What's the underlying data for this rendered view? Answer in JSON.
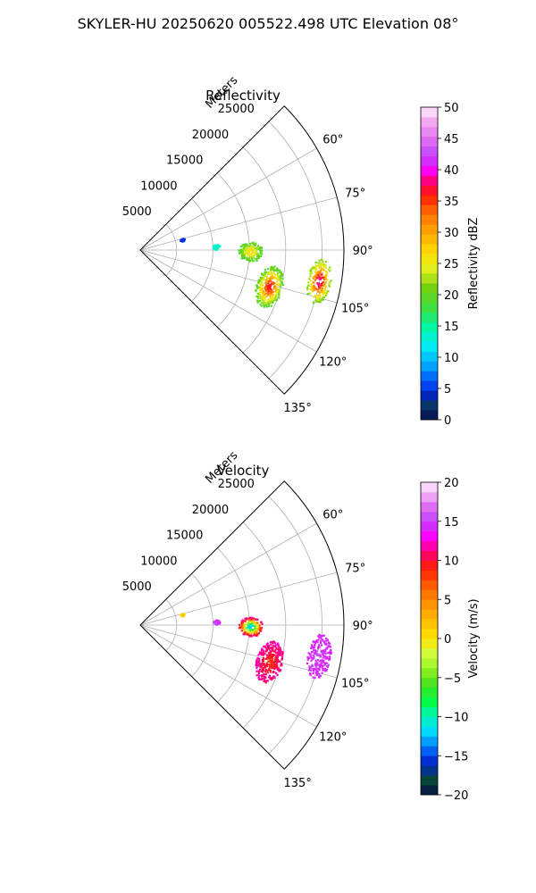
{
  "figure": {
    "title": "SKYLER-HU  20250620  005522.498 UTC Elevation 08°"
  },
  "chart_data": [
    {
      "type": "heatmap",
      "projection": "polar-sector",
      "title": "Reflectivity",
      "radial_label": "Meters",
      "radial_ticks": [
        5000,
        10000,
        15000,
        20000,
        25000
      ],
      "radial_tick_labels": [
        "5000",
        "10000",
        "15000",
        "20000",
        "25000"
      ],
      "r_max": 28000,
      "theta_range_deg": [
        45,
        135
      ],
      "angle_ticks_deg": [
        60,
        75,
        90,
        105,
        120,
        135
      ],
      "angle_tick_labels": [
        "60°",
        "75°",
        "90°",
        "105°",
        "120°",
        "135°"
      ],
      "grid": true,
      "colorbar": {
        "label": "Reflectivity dBZ",
        "min": 0,
        "max": 50,
        "ticks": [
          0,
          5,
          10,
          15,
          20,
          25,
          30,
          35,
          40,
          45,
          50
        ],
        "tick_labels": [
          "0",
          "5",
          "10",
          "15",
          "20",
          "25",
          "30",
          "35",
          "40",
          "45",
          "50"
        ],
        "stops": [
          {
            "v": 0,
            "c": "#000f40"
          },
          {
            "v": 2,
            "c": "#0a2a80"
          },
          {
            "v": 3,
            "c": "#0a4a3a"
          },
          {
            "v": 4,
            "c": "#0020c8"
          },
          {
            "v": 6,
            "c": "#0050ff"
          },
          {
            "v": 9,
            "c": "#00b0ff"
          },
          {
            "v": 12,
            "c": "#00f0f0"
          },
          {
            "v": 15,
            "c": "#00f5a0"
          },
          {
            "v": 18,
            "c": "#40e040"
          },
          {
            "v": 21,
            "c": "#70d010"
          },
          {
            "v": 24,
            "c": "#e0f020"
          },
          {
            "v": 27,
            "c": "#ffd800"
          },
          {
            "v": 30,
            "c": "#ffa800"
          },
          {
            "v": 33,
            "c": "#ff7000"
          },
          {
            "v": 36,
            "c": "#ff1800"
          },
          {
            "v": 38,
            "c": "#ff0070"
          },
          {
            "v": 40,
            "c": "#ff00ff"
          },
          {
            "v": 42,
            "c": "#c040ff"
          },
          {
            "v": 45,
            "c": "#e070f0"
          },
          {
            "v": 48,
            "c": "#f4b0f0"
          },
          {
            "v": 50,
            "c": "#fff0ff"
          }
        ]
      },
      "cells": [
        {
          "az": 100,
          "r": 25000,
          "dr": 1600,
          "daz": 7,
          "peak": 39,
          "base": 19
        },
        {
          "az": 106,
          "r": 18500,
          "dr": 1800,
          "daz": 9,
          "peak": 37,
          "base": 17
        },
        {
          "az": 91,
          "r": 15200,
          "dr": 1700,
          "daz": 5,
          "peak": 27,
          "base": 18
        },
        {
          "az": 88,
          "r": 10500,
          "dr": 500,
          "daz": 2,
          "peak": 14,
          "base": 13
        },
        {
          "az": 77,
          "r": 6000,
          "dr": 300,
          "daz": 2,
          "peak": 5,
          "base": 5
        }
      ]
    },
    {
      "type": "heatmap",
      "projection": "polar-sector",
      "title": "Velocity",
      "radial_label": "Meters",
      "radial_ticks": [
        5000,
        10000,
        15000,
        20000,
        25000
      ],
      "radial_tick_labels": [
        "5000",
        "10000",
        "15000",
        "20000",
        "25000"
      ],
      "r_max": 28000,
      "theta_range_deg": [
        45,
        135
      ],
      "angle_ticks_deg": [
        60,
        75,
        90,
        105,
        120,
        135
      ],
      "angle_tick_labels": [
        "60°",
        "75°",
        "90°",
        "105°",
        "120°",
        "135°"
      ],
      "grid": true,
      "colorbar": {
        "label": "Velocity (m/s)",
        "min": -20,
        "max": 20,
        "ticks": [
          -20,
          -15,
          -10,
          -5,
          0,
          5,
          10,
          15,
          20
        ],
        "tick_labels": [
          "−20",
          "−15",
          "−10",
          "−5",
          "0",
          "5",
          "10",
          "15",
          "20"
        ],
        "stops": [
          {
            "v": -20,
            "c": "#000f40"
          },
          {
            "v": -18,
            "c": "#0a4a3a"
          },
          {
            "v": -16,
            "c": "#0020c8"
          },
          {
            "v": -14,
            "c": "#0070ff"
          },
          {
            "v": -12,
            "c": "#00d8ff"
          },
          {
            "v": -10,
            "c": "#00f5c0"
          },
          {
            "v": -8,
            "c": "#00ff40"
          },
          {
            "v": -6,
            "c": "#40e020"
          },
          {
            "v": -4,
            "c": "#90f020"
          },
          {
            "v": -2,
            "c": "#d0ff40"
          },
          {
            "v": 0,
            "c": "#ffe400"
          },
          {
            "v": 3,
            "c": "#ffb000"
          },
          {
            "v": 6,
            "c": "#ff7000"
          },
          {
            "v": 9,
            "c": "#ff2000"
          },
          {
            "v": 11,
            "c": "#ff0070"
          },
          {
            "v": 13,
            "c": "#ff00ff"
          },
          {
            "v": 15,
            "c": "#c040ff"
          },
          {
            "v": 17,
            "c": "#e070f0"
          },
          {
            "v": 20,
            "c": "#fff0ff"
          }
        ]
      },
      "cells": [
        {
          "az": 100,
          "r": 25000,
          "dr": 1600,
          "daz": 7,
          "peak": 15,
          "base": 14
        },
        {
          "az": 106,
          "r": 18500,
          "dr": 1800,
          "daz": 9,
          "peak": 9,
          "base": 12
        },
        {
          "az": 91,
          "r": 15200,
          "dr": 1700,
          "daz": 5,
          "peak": -13,
          "base": 15
        },
        {
          "az": 88,
          "r": 10500,
          "dr": 500,
          "daz": 2,
          "peak": 15,
          "base": 14
        },
        {
          "az": 77,
          "r": 6000,
          "dr": 300,
          "daz": 2,
          "peak": 2,
          "base": 0
        }
      ]
    }
  ]
}
